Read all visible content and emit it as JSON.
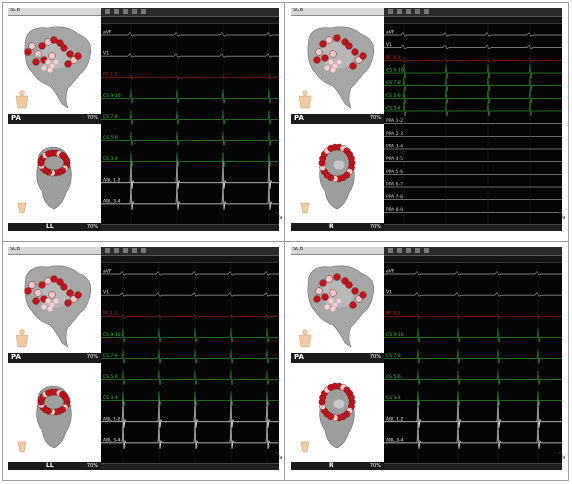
{
  "panels": [
    {
      "id": "top-left",
      "toolbar_title": "SCB",
      "top_view_label": "PA",
      "top_view_zoom": "70%",
      "bottom_view_label": "LL",
      "bottom_view_zoom": "70%",
      "channels": [
        {
          "label": "aVF",
          "color": "#e8e8e8"
        },
        {
          "label": "V1",
          "color": "#e8e8e8"
        },
        {
          "label": "RF 1-2",
          "color": "#d02020"
        },
        {
          "label": "CS 9-10",
          "color": "#35c935"
        },
        {
          "label": "CS 7-8",
          "color": "#35c935"
        },
        {
          "label": "CS 5-6",
          "color": "#35c935"
        },
        {
          "label": "CS 3-4",
          "color": "#35c935"
        },
        {
          "label": "ABL 1-2",
          "color": "#e8e8e8"
        },
        {
          "label": "ABL 3-4",
          "color": "#e8e8e8"
        }
      ]
    },
    {
      "id": "top-right",
      "toolbar_title": "SCB",
      "top_view_label": "PA",
      "top_view_zoom": "70%",
      "bottom_view_label": "R",
      "bottom_view_zoom": "70%",
      "channels": [
        {
          "label": "aVF",
          "color": "#e8e8e8"
        },
        {
          "label": "V1",
          "color": "#e8e8e8"
        },
        {
          "label": "RF 1-2",
          "color": "#d02020"
        },
        {
          "label": "CS 9-10",
          "color": "#35c935"
        },
        {
          "label": "CS 7-8",
          "color": "#35c935"
        },
        {
          "label": "CS 5-6",
          "color": "#35c935"
        },
        {
          "label": "CS 3-4",
          "color": "#35c935"
        },
        {
          "label": "PPA 1-2",
          "color": "#cfcfcf"
        },
        {
          "label": "PPA 2-3",
          "color": "#cfcfcf"
        },
        {
          "label": "PPA 3-4",
          "color": "#cfcfcf"
        },
        {
          "label": "PPA 4-5",
          "color": "#cfcfcf"
        },
        {
          "label": "PPA 5-6",
          "color": "#cfcfcf"
        },
        {
          "label": "PPA 6-7",
          "color": "#cfcfcf"
        },
        {
          "label": "PPA 7-8",
          "color": "#cfcfcf"
        },
        {
          "label": "PPA 8-9",
          "color": "#cfcfcf"
        }
      ]
    },
    {
      "id": "bottom-left",
      "toolbar_title": "SCB",
      "top_view_label": "PA",
      "top_view_zoom": "70%",
      "bottom_view_label": "LL",
      "bottom_view_zoom": "70%",
      "channels": [
        {
          "label": "aVF",
          "color": "#e8e8e8"
        },
        {
          "label": "V1",
          "color": "#e8e8e8"
        },
        {
          "label": "RF 1-2",
          "color": "#d02020"
        },
        {
          "label": "CS 9-10",
          "color": "#35c935"
        },
        {
          "label": "CS 7-8",
          "color": "#35c935"
        },
        {
          "label": "CS 5-6",
          "color": "#35c935"
        },
        {
          "label": "CS 3-4",
          "color": "#35c935"
        },
        {
          "label": "ABL 1-2",
          "color": "#e8e8e8"
        },
        {
          "label": "ABL 3-4",
          "color": "#e8e8e8"
        }
      ]
    },
    {
      "id": "bottom-right",
      "toolbar_title": "SCB",
      "top_view_label": "PA",
      "top_view_zoom": "70%",
      "bottom_view_label": "R",
      "bottom_view_zoom": "70%",
      "channels": [
        {
          "label": "aVF",
          "color": "#e8e8e8"
        },
        {
          "label": "V1",
          "color": "#e8e8e8"
        },
        {
          "label": "RF 1-2",
          "color": "#d02020"
        },
        {
          "label": "CS 9-10",
          "color": "#35c935"
        },
        {
          "label": "CS 7-8",
          "color": "#35c935"
        },
        {
          "label": "CS 5-6",
          "color": "#35c935"
        },
        {
          "label": "CS 3-4",
          "color": "#35c935"
        },
        {
          "label": "ABL 1-2",
          "color": "#e8e8e8"
        },
        {
          "label": "ABL 3-4",
          "color": "#e8e8e8"
        }
      ]
    }
  ],
  "cursor_icon": "resize-cursor-icon",
  "colors": {
    "background": "#050505",
    "green_trace": "#35c935",
    "red_trace": "#d02020",
    "white_trace": "#e8e8e8",
    "lesion_red": "#c0141c",
    "lesion_pink": "#f0c8c8",
    "model_gray": "#9a9a9a"
  }
}
